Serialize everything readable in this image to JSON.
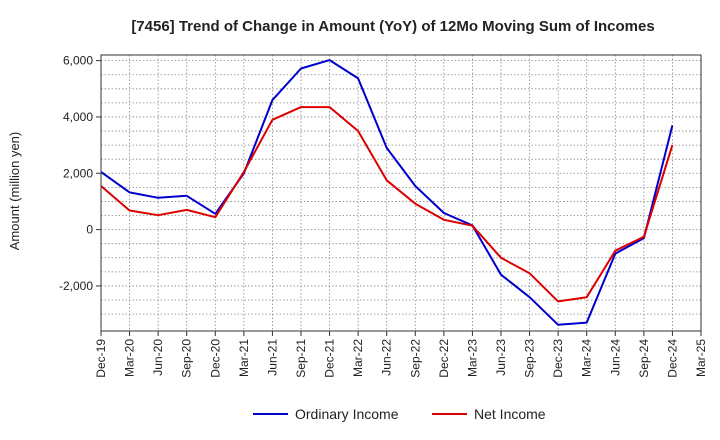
{
  "chart_data": {
    "type": "line",
    "title": "[7456]  Trend of Change in Amount (YoY) of 12Mo Moving Sum of Incomes",
    "xlabel": "",
    "ylabel": "Amount (million yen)",
    "ylim": [
      -3600,
      6200
    ],
    "yticks": [
      -2000,
      0,
      2000,
      4000,
      6000
    ],
    "ytick_labels": [
      "-2,000",
      "0",
      "2,000",
      "4,000",
      "6,000"
    ],
    "grid": true,
    "legend_position": "bottom-center",
    "categories": [
      "Dec-19",
      "Mar-20",
      "Jun-20",
      "Sep-20",
      "Dec-20",
      "Mar-21",
      "Jun-21",
      "Sep-21",
      "Dec-21",
      "Mar-22",
      "Jun-22",
      "Sep-22",
      "Dec-22",
      "Mar-23",
      "Jun-23",
      "Sep-23",
      "Dec-23",
      "Mar-24",
      "Jun-24",
      "Sep-24",
      "Dec-24",
      "Mar-25"
    ],
    "series": [
      {
        "name": "Ordinary Income",
        "color": "#0000cc",
        "values": [
          2050,
          1320,
          1130,
          1200,
          560,
          2000,
          4600,
          5720,
          6020,
          5370,
          2900,
          1550,
          590,
          150,
          -1600,
          -2400,
          -3380,
          -3300,
          -850,
          -300,
          3700,
          null
        ]
      },
      {
        "name": "Net Income",
        "color": "#dd0000",
        "values": [
          1550,
          680,
          510,
          700,
          440,
          2050,
          3900,
          4350,
          4350,
          3500,
          1750,
          920,
          350,
          140,
          -1000,
          -1550,
          -2550,
          -2400,
          -750,
          -250,
          3000,
          null
        ]
      }
    ]
  }
}
